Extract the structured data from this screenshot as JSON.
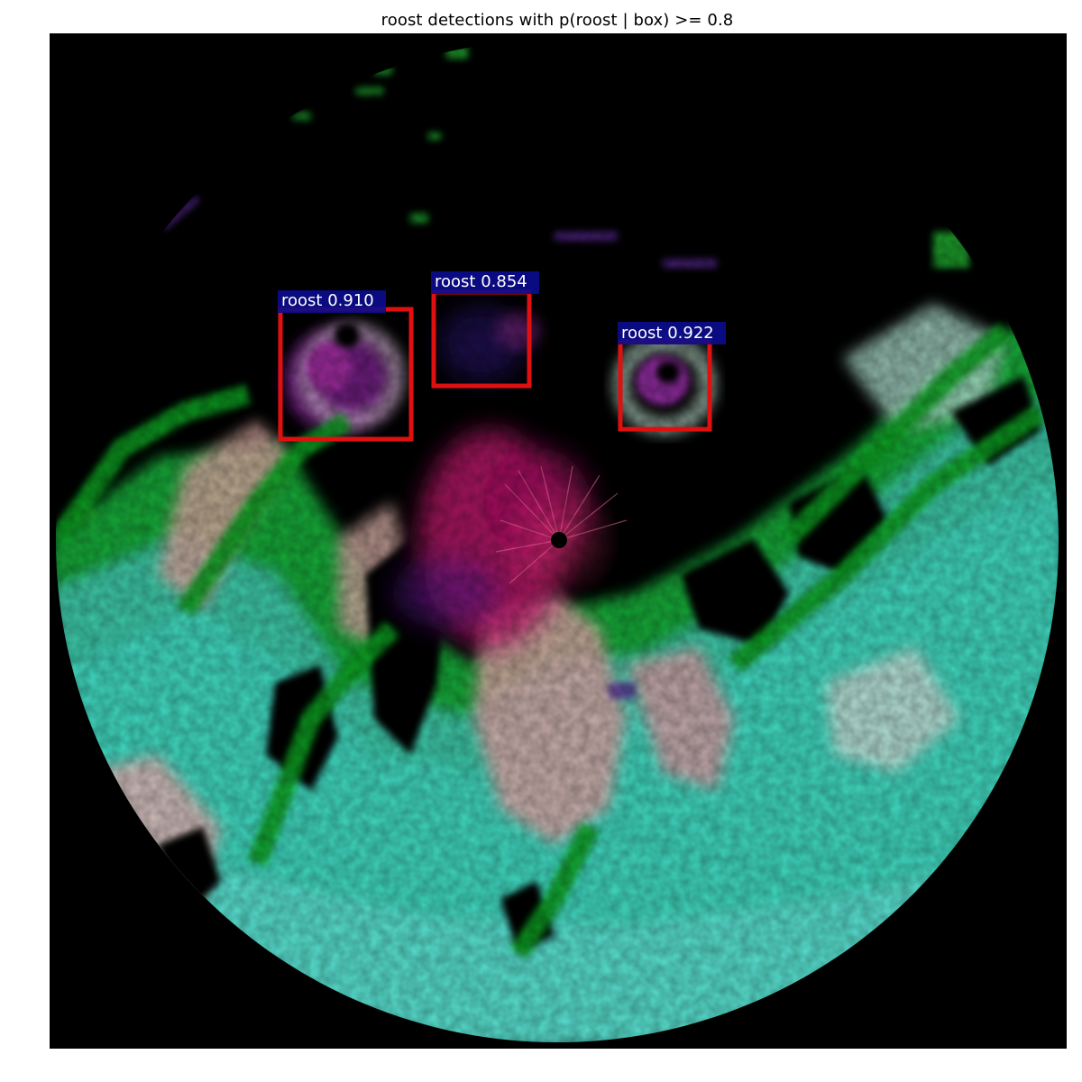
{
  "figure": {
    "title": "roost detections with p(roost | box) >= 0.8"
  },
  "colors": {
    "box_stroke": "#e01010",
    "label_background": "#0c0c8c",
    "label_text": "#ffffff",
    "background": "#000000"
  },
  "detections": [
    {
      "label": "roost 0.910",
      "score": 0.91
    },
    {
      "label": "roost 0.854",
      "score": 0.854
    },
    {
      "label": "roost 0.922",
      "score": 0.922
    }
  ]
}
